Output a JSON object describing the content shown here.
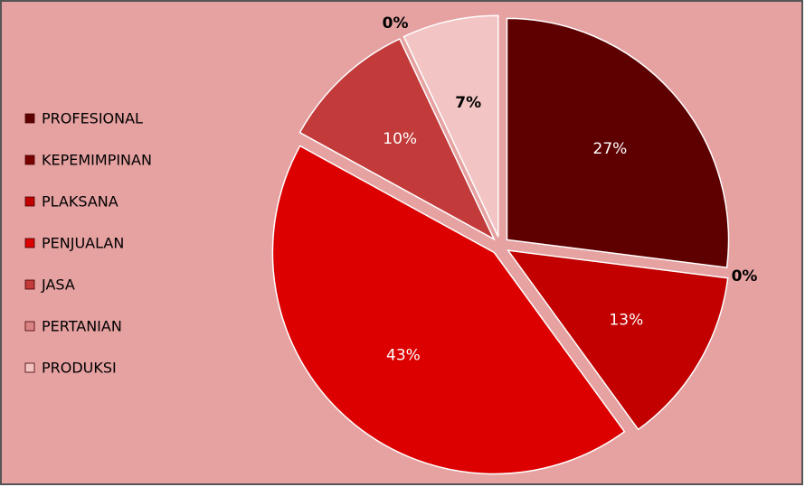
{
  "chart_data": {
    "type": "pie",
    "categories": [
      "PROFESIONAL",
      "KEPEMIMPINAN",
      "PLAKSANA",
      "PENJUALAN",
      "JASA",
      "PERTANIAN",
      "PRODUKSI"
    ],
    "values": [
      27,
      0,
      13,
      43,
      10,
      0,
      7
    ],
    "value_labels": [
      "27%",
      "0%",
      "13%",
      "43%",
      "10%",
      "0%",
      "7%"
    ],
    "colors": [
      "#5e0000",
      "#7a0000",
      "#c20000",
      "#dd0000",
      "#c23a3a",
      "#d98484",
      "#f2c4c4"
    ],
    "legend": "left"
  }
}
